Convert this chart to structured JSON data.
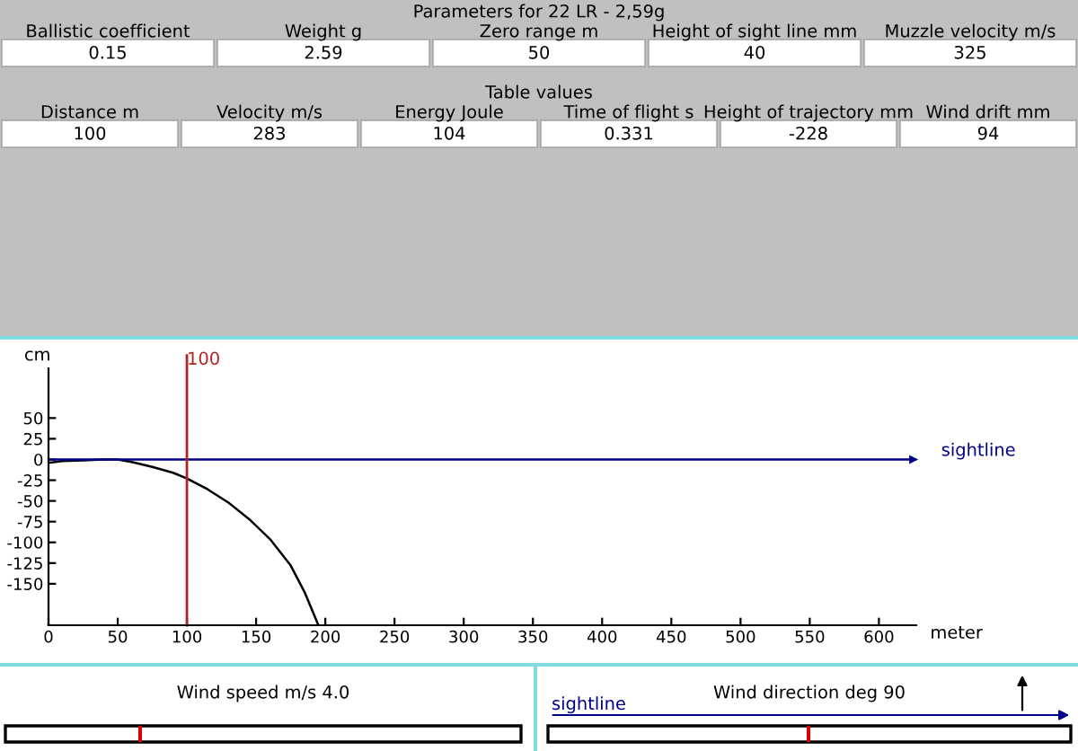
{
  "chart_data": [
    {
      "type": "other",
      "title": "Parameters for 22 LR - 2,59g",
      "annotations": [
        "Ballistic coefficient",
        "Weight g",
        "Zero range m",
        "Height of sight line mm",
        "Muzzle velocity m/s",
        "0.15",
        "2.59",
        "50",
        "40",
        "325"
      ]
    },
    {
      "type": "other",
      "title": "Table values",
      "annotations": [
        "Distance m",
        "Velocity m/s",
        "Energy Joule",
        "Time of flight s",
        "Height of trajectory mm",
        "Wind drift mm",
        "100",
        "283",
        "104",
        "0.331",
        "-228",
        "94"
      ]
    },
    {
      "type": "line",
      "xlabel": "meter",
      "ylabel": "cm",
      "x": [
        0,
        10,
        25,
        40,
        50,
        60,
        75,
        90,
        100,
        115,
        130,
        145,
        160,
        175,
        185,
        195
      ],
      "series": [
        {
          "color": "#000000",
          "values": [
            -4,
            -2,
            -1,
            0,
            0,
            -3,
            -9,
            -16,
            -23,
            -36,
            -52,
            -72,
            -96,
            -128,
            -160,
            -200
          ]
        }
      ],
      "xlim": [
        0,
        627
      ],
      "ylim": [
        -200,
        110
      ],
      "xticks": [
        0,
        50,
        100,
        150,
        200,
        250,
        300,
        350,
        400,
        450,
        500,
        550,
        600
      ],
      "yticks": [
        50,
        25,
        0,
        -25,
        -50,
        -75,
        -100,
        -125,
        -150
      ],
      "ref_lines": [
        {
          "axis": "y",
          "value": 0,
          "label": "sightline",
          "color": "#00008b"
        },
        {
          "axis": "x",
          "value": 100,
          "label": "100",
          "color": "#b22222"
        }
      ],
      "grid": false,
      "legend": false,
      "marker": "none",
      "line_style": "solid"
    },
    {
      "type": "other",
      "title": "Wind speed m/s 4.0"
    },
    {
      "type": "other",
      "title": "Wind direction deg 90",
      "annotations": [
        "sightline"
      ]
    }
  ]
}
